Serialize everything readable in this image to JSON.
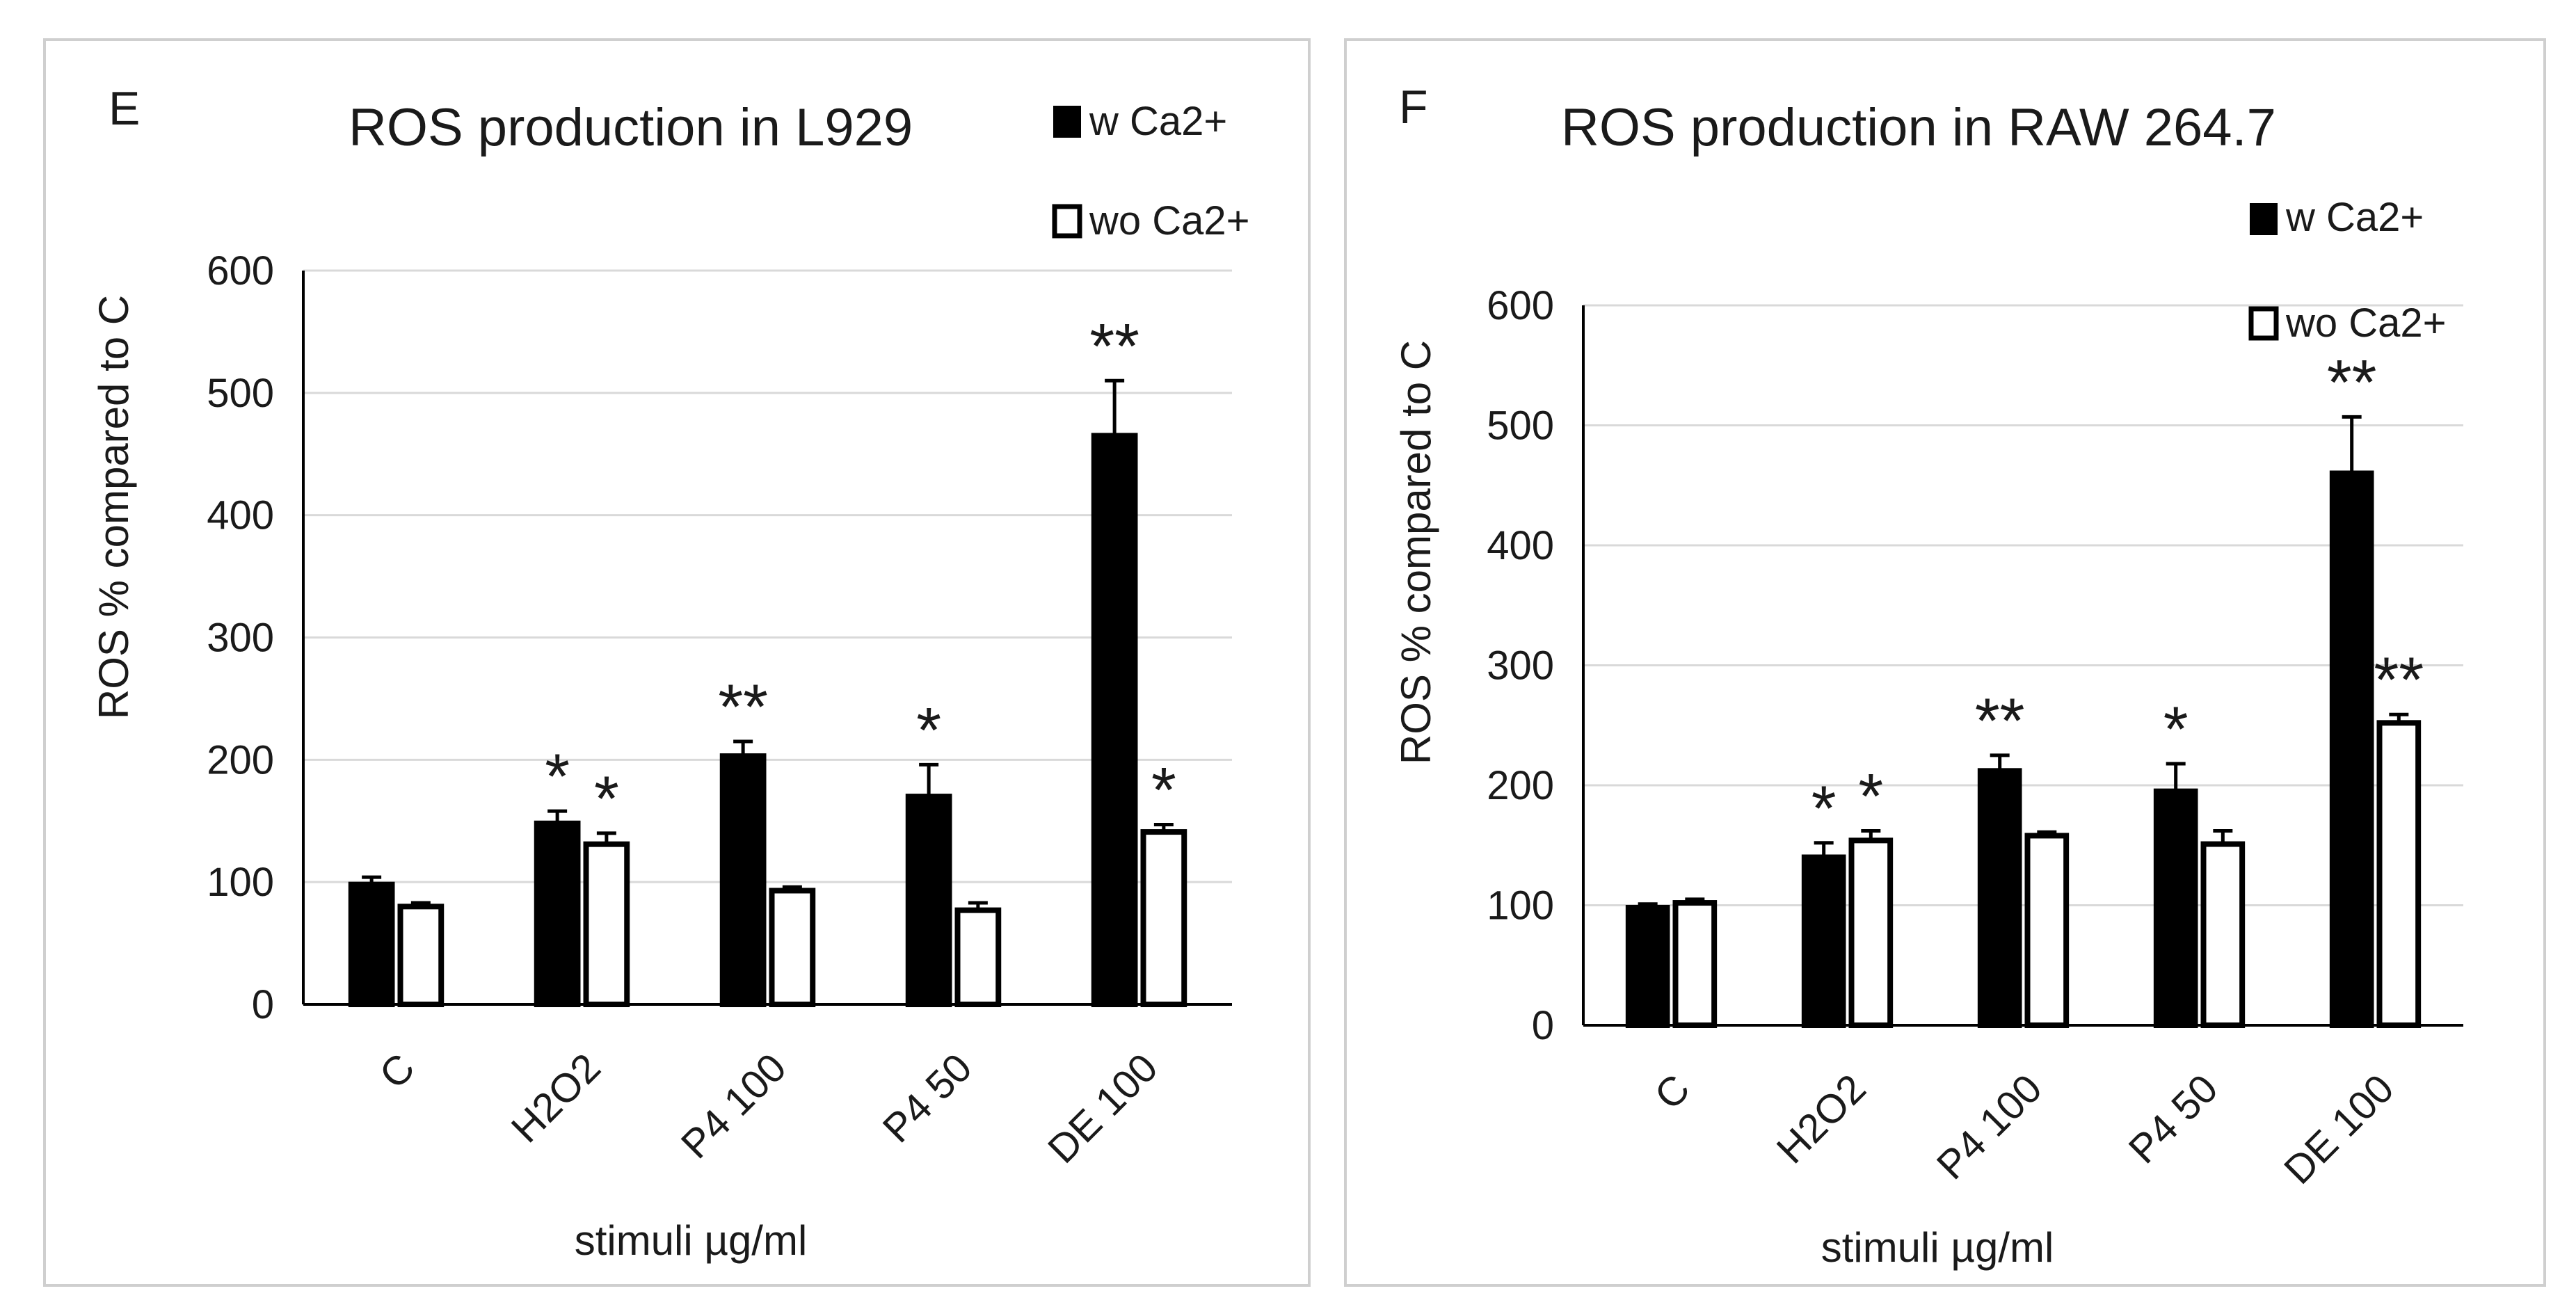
{
  "colors": {
    "filled": "#000000",
    "open": "#ffffff",
    "grid": "#d9d9d9",
    "axis": "#000000"
  },
  "chart_data": [
    {
      "type": "bar",
      "panel_label": "E",
      "title": "ROS production in L929",
      "xlabel": "stimuli µg/ml",
      "ylabel": "ROS % compared to C",
      "ylim": [
        0,
        600
      ],
      "yticks": [
        0,
        100,
        200,
        300,
        400,
        500,
        600
      ],
      "grid": true,
      "legend_position": "top-right",
      "categories": [
        "C",
        "H2O2",
        "P4 100",
        "P4 50",
        "DE 100"
      ],
      "series": [
        {
          "name": "w Ca2+",
          "fill": "#000000",
          "values": [
            98,
            148,
            203,
            170,
            465
          ],
          "errors": [
            6,
            10,
            12,
            26,
            45
          ],
          "significance": [
            "",
            "*",
            "**",
            "*",
            "**"
          ]
        },
        {
          "name": "wo Ca2+",
          "fill": "#ffffff",
          "values": [
            80,
            131,
            93,
            77,
            141
          ],
          "errors": [
            3,
            9,
            3,
            6,
            6
          ],
          "significance": [
            "",
            "*",
            "",
            "",
            "*"
          ]
        }
      ]
    },
    {
      "type": "bar",
      "panel_label": "F",
      "title": "ROS production in RAW 264.7",
      "xlabel": "stimuli µg/ml",
      "ylabel": "ROS % compared to C",
      "ylim": [
        0,
        600
      ],
      "yticks": [
        0,
        100,
        200,
        300,
        400,
        500,
        600
      ],
      "grid": true,
      "legend_position": "top-right",
      "categories": [
        "C",
        "H2O2",
        "P4 100",
        "P4 50",
        "DE 100"
      ],
      "series": [
        {
          "name": "w Ca2+",
          "fill": "#000000",
          "values": [
            98,
            140,
            212,
            195,
            460
          ],
          "errors": [
            3,
            12,
            13,
            23,
            47
          ],
          "significance": [
            "",
            "*",
            "**",
            "*",
            "**"
          ]
        },
        {
          "name": "wo Ca2+",
          "fill": "#ffffff",
          "values": [
            102,
            154,
            158,
            151,
            252
          ],
          "errors": [
            3,
            8,
            3,
            11,
            7
          ],
          "significance": [
            "",
            "*",
            "",
            "",
            "**"
          ]
        }
      ]
    }
  ]
}
